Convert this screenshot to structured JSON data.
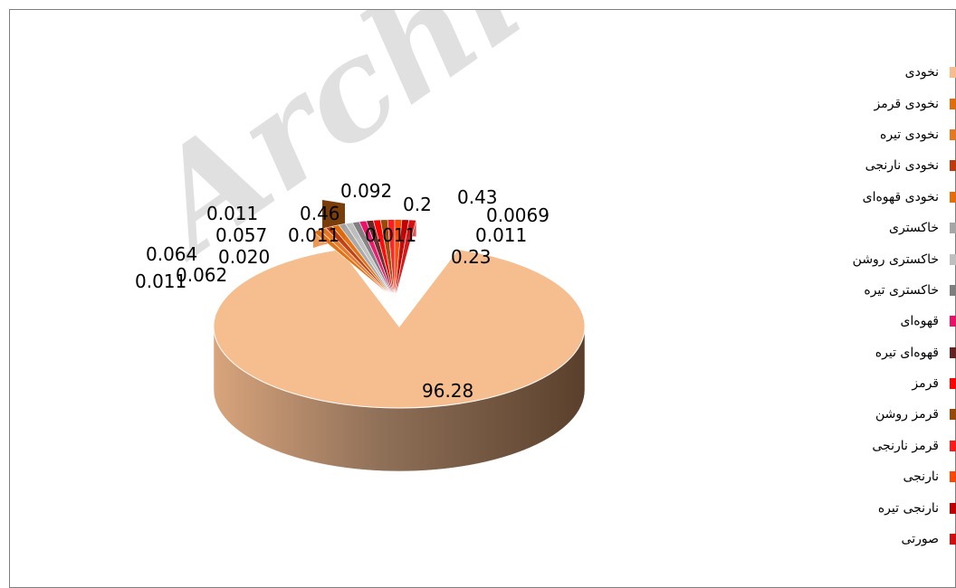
{
  "chart_data": {
    "type": "pie",
    "variant": "3d-exploded",
    "categories": [
      "نخودی",
      "نخودی قرمز",
      "نخودی تیره",
      "نخودی نارنجی",
      "نخودی قهوه‌ای",
      "خاکستری",
      "خاکستری روشن",
      "خاکستری تیره",
      "قهوه‌ای",
      "قهوه‌ای تیره",
      "قرمز",
      "قرمز روشن",
      "قرمز نارنجی",
      "نارنجی",
      "نارنجی تیره",
      "صورتی"
    ],
    "values": [
      96.28,
      0.011,
      0.064,
      0.062,
      0.02,
      0.057,
      0.011,
      0.46,
      0.011,
      0.092,
      0.011,
      0.43,
      0.0069,
      0.011,
      0.23,
      0.2
    ],
    "value_labels": [
      "96.28",
      "0.011",
      "0.064",
      "0.062",
      "0.020",
      "0.057",
      "0.011",
      "0.46",
      "0.011",
      "0.092",
      "0.011",
      "0.43",
      "0.0069",
      "0.011",
      "0.23",
      "0.2"
    ],
    "colors": [
      "#f6bd8e",
      "#e36c0a",
      "#e87722",
      "#c0390b",
      "#e46c0a",
      "#a6a6a6",
      "#bfbfbf",
      "#7f7f7f",
      "#ec0f6a",
      "#632523",
      "#ff0000",
      "#984806",
      "#ff1a1a",
      "#ff4500",
      "#c00000",
      "#d20f0f"
    ],
    "legend_position": "right",
    "title": ""
  },
  "watermark": "Archive"
}
